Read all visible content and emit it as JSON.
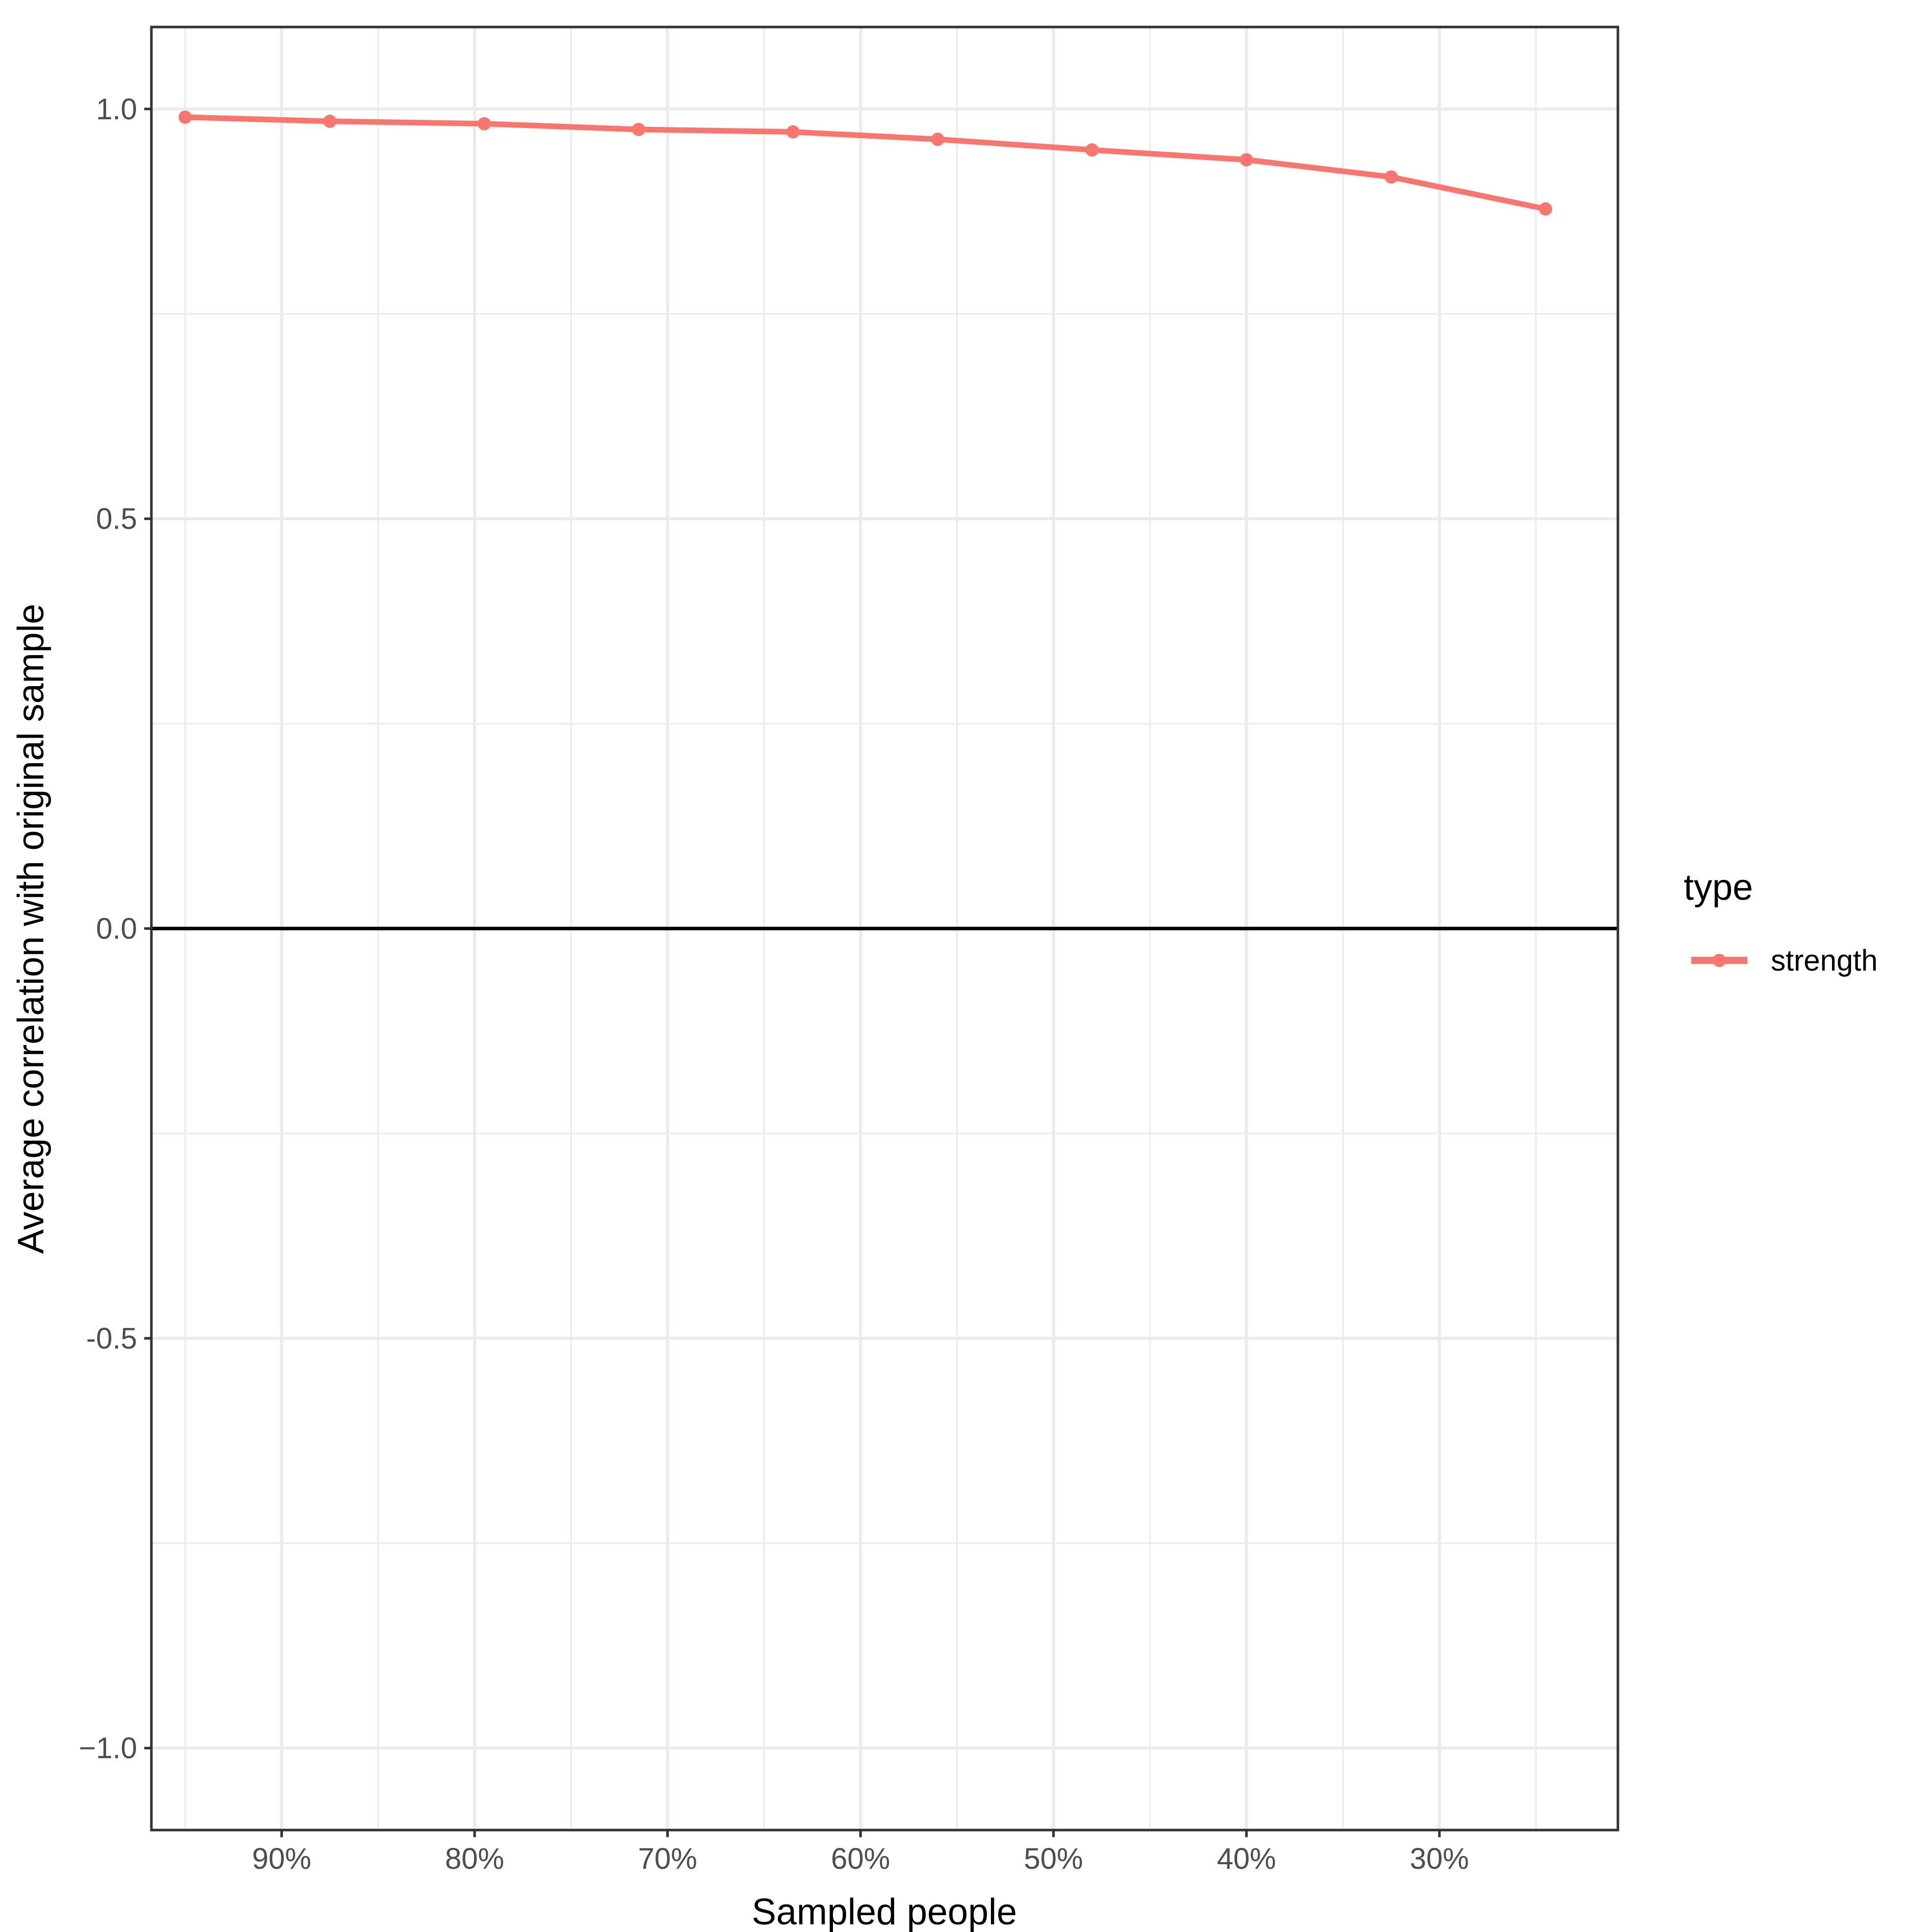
{
  "chart_data": {
    "type": "line",
    "title": "",
    "xlabel": "Sampled people",
    "ylabel": "Average correlation with original sample",
    "x_reversed": true,
    "x_unit": "%",
    "xlim": [
      96.75,
      20.75
    ],
    "ylim": [
      -1.1,
      1.1
    ],
    "x_ticks": [
      {
        "value": 90,
        "label": "90%"
      },
      {
        "value": 80,
        "label": "80%"
      },
      {
        "value": 70,
        "label": "70%"
      },
      {
        "value": 60,
        "label": "60%"
      },
      {
        "value": 50,
        "label": "50%"
      },
      {
        "value": 40,
        "label": "40%"
      },
      {
        "value": 30,
        "label": "30%"
      }
    ],
    "y_ticks": [
      {
        "value": 1.0,
        "label": "1.0"
      },
      {
        "value": 0.5,
        "label": "0.5"
      },
      {
        "value": 0.0,
        "label": "0.0"
      },
      {
        "value": -0.5,
        "label": "-0.5"
      },
      {
        "value": -1.0,
        "label": "−1.0"
      }
    ],
    "x_minor_gridlines": [
      95,
      85,
      75,
      65,
      55,
      45,
      35,
      25
    ],
    "y_minor_gridlines": [
      0.75,
      0.25,
      -0.25,
      -0.75
    ],
    "reference_line_y": 0,
    "grid": true,
    "legend": {
      "title": "type",
      "position": "right"
    },
    "series": [
      {
        "name": "strength",
        "color": "#F8766D",
        "x": [
          95,
          87.5,
          79.5,
          71.5,
          63.5,
          56,
          48,
          40,
          32.5,
          24.5
        ],
        "y": [
          0.99,
          0.985,
          0.982,
          0.975,
          0.972,
          0.963,
          0.95,
          0.938,
          0.917,
          0.878
        ]
      }
    ]
  }
}
